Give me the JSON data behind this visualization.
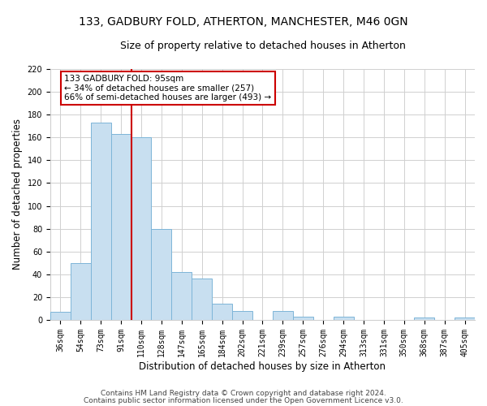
{
  "title": "133, GADBURY FOLD, ATHERTON, MANCHESTER, M46 0GN",
  "subtitle": "Size of property relative to detached houses in Atherton",
  "xlabel": "Distribution of detached houses by size in Atherton",
  "ylabel": "Number of detached properties",
  "bar_labels": [
    "36sqm",
    "54sqm",
    "73sqm",
    "91sqm",
    "110sqm",
    "128sqm",
    "147sqm",
    "165sqm",
    "184sqm",
    "202sqm",
    "221sqm",
    "239sqm",
    "257sqm",
    "276sqm",
    "294sqm",
    "313sqm",
    "331sqm",
    "350sqm",
    "368sqm",
    "387sqm",
    "405sqm"
  ],
  "bar_values": [
    7,
    50,
    173,
    163,
    160,
    80,
    42,
    36,
    14,
    8,
    0,
    8,
    3,
    0,
    3,
    0,
    0,
    0,
    2,
    0,
    2
  ],
  "bar_color": "#c8dff0",
  "bar_edge_color": "#7db5d8",
  "vline_color": "#cc0000",
  "annotation_text": "133 GADBURY FOLD: 95sqm\n← 34% of detached houses are smaller (257)\n66% of semi-detached houses are larger (493) →",
  "annotation_box_edgecolor": "#cc0000",
  "annotation_box_facecolor": "#ffffff",
  "ylim": [
    0,
    220
  ],
  "yticks": [
    0,
    20,
    40,
    60,
    80,
    100,
    120,
    140,
    160,
    180,
    200,
    220
  ],
  "footer1": "Contains HM Land Registry data © Crown copyright and database right 2024.",
  "footer2": "Contains public sector information licensed under the Open Government Licence v3.0.",
  "title_fontsize": 10,
  "subtitle_fontsize": 9,
  "axis_label_fontsize": 8.5,
  "tick_fontsize": 7,
  "annotation_fontsize": 7.5,
  "footer_fontsize": 6.5,
  "grid_color": "#d0d0d0"
}
